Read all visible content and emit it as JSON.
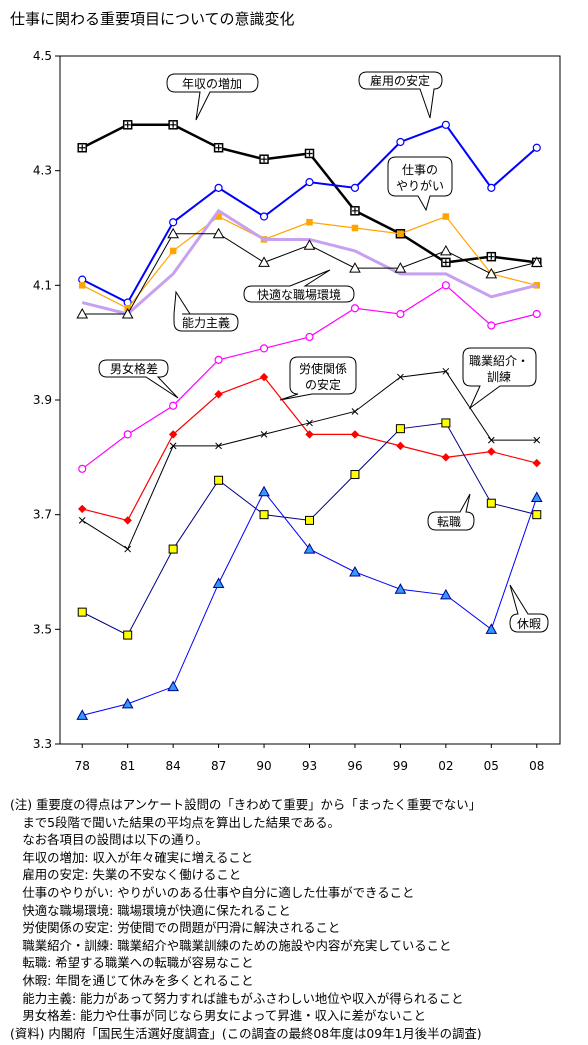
{
  "chart_data": {
    "type": "line",
    "title": "仕事に関わる重要項目についての意識変化",
    "categories": [
      "78",
      "81",
      "84",
      "87",
      "90",
      "93",
      "96",
      "99",
      "02",
      "05",
      "08"
    ],
    "ylim": [
      3.3,
      4.5
    ],
    "yticks": [
      "3.3",
      "3.5",
      "3.7",
      "3.9",
      "4.1",
      "4.3",
      "4.5"
    ],
    "grid": false,
    "series": [
      {
        "name": "年収の増加",
        "color": "#000000",
        "marker": "square-plus",
        "width": 2.5,
        "values": [
          4.34,
          4.38,
          4.38,
          4.34,
          4.32,
          4.33,
          4.23,
          4.19,
          4.14,
          4.15,
          4.14
        ]
      },
      {
        "name": "雇用の安定",
        "color": "#0000ff",
        "marker": "circle",
        "width": 2,
        "values": [
          4.11,
          4.07,
          4.21,
          4.27,
          4.22,
          4.28,
          4.27,
          4.35,
          4.38,
          4.27,
          4.34
        ]
      },
      {
        "name": "仕事のやりがい",
        "color": "#ffa500",
        "marker": "square",
        "width": 1.2,
        "values": [
          4.1,
          4.06,
          4.16,
          4.22,
          4.18,
          4.21,
          4.2,
          4.19,
          4.22,
          4.12,
          4.1
        ]
      },
      {
        "name": "快適な職場環境",
        "color": "#c8a0f0",
        "marker": "none",
        "width": 3,
        "values": [
          4.07,
          4.05,
          4.12,
          4.23,
          4.18,
          4.18,
          4.16,
          4.12,
          4.12,
          4.08,
          4.1
        ]
      },
      {
        "name": "能力主義",
        "color": "#000000",
        "marker": "triangle-open",
        "width": 1,
        "values": [
          4.05,
          4.05,
          4.19,
          4.19,
          4.14,
          4.17,
          4.13,
          4.13,
          4.16,
          4.12,
          4.14
        ]
      },
      {
        "name": "男女格差",
        "color": "#ff00ff",
        "marker": "circle",
        "width": 1.2,
        "values": [
          3.78,
          3.84,
          3.89,
          3.97,
          3.99,
          4.01,
          4.06,
          4.05,
          4.1,
          4.03,
          4.05
        ]
      },
      {
        "name": "労使関係の安定",
        "color": "#ff0000",
        "marker": "diamond",
        "width": 1.2,
        "values": [
          3.71,
          3.69,
          3.84,
          3.91,
          3.94,
          3.84,
          3.84,
          3.82,
          3.8,
          3.81,
          3.79
        ]
      },
      {
        "name": "職業紹介・訓練",
        "color": "#000000",
        "marker": "x",
        "width": 1,
        "values": [
          3.69,
          3.64,
          3.82,
          3.82,
          3.84,
          3.86,
          3.88,
          3.94,
          3.95,
          3.83,
          3.83
        ]
      },
      {
        "name": "転職",
        "color": "#000080",
        "marker": "square-yellow",
        "width": 1,
        "values": [
          3.53,
          3.49,
          3.64,
          3.76,
          3.7,
          3.69,
          3.77,
          3.85,
          3.86,
          3.72,
          3.7
        ]
      },
      {
        "name": "休暇",
        "color": "#0000ff",
        "marker": "triangle-blue",
        "width": 1,
        "values": [
          3.35,
          3.37,
          3.4,
          3.58,
          3.74,
          3.64,
          3.6,
          3.57,
          3.56,
          3.5,
          3.73
        ]
      }
    ]
  },
  "callouts": {
    "income": "年収の増加",
    "employment": "雇用の安定",
    "worth_line1": "仕事の",
    "worth_line2": "やりがい",
    "environment": "快適な職場環境",
    "merit": "能力主義",
    "gender": "男女格差",
    "labor_line1": "労使関係",
    "labor_line2": "の安定",
    "placement_line1": "職業紹介・",
    "placement_line2": "訓練",
    "jobchange": "転職",
    "leave": "休暇"
  },
  "notes": [
    "(注) 重要度の得点はアンケート設問の「きわめて重要」から「まったく重要でない」",
    "　まで5段階で聞いた結果の平均点を算出した結果である。",
    "　なお各項目の設問は以下の通り。",
    "　年収の増加: 収入が年々確実に増えること",
    "　雇用の安定: 失業の不安なく働けること",
    "　仕事のやりがい: やりがいのある仕事や自分に適した仕事ができること",
    "　快適な職場環境: 職場環境が快適に保たれること",
    "　労使関係の安定: 労使間での問題が円滑に解決されること",
    "　職業紹介・訓練: 職業紹介や職業訓練のための施設や内容が充実していること",
    "　転職: 希望する職業への転職が容易なこと",
    "　休暇: 年間を通じて休みを多くとれること",
    "　能力主義: 能力があって努力すれば誰もがふさわしい地位や収入が得られること",
    "　男女格差: 能力や仕事が同じなら男女によって昇進・収入に差がないこと",
    "(資料) 内閣府「国民生活選好度調査」(この調査の最終08年度は09年1月後半の調査)"
  ]
}
